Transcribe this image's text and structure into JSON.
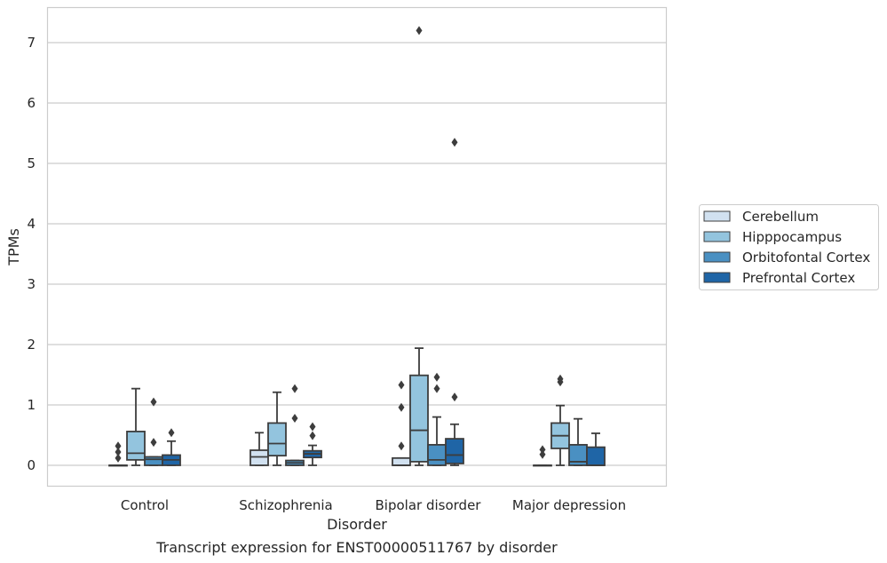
{
  "chart_data": {
    "type": "boxplot",
    "xlabel": "Disorder",
    "ylabel": "TPMs",
    "caption": "Transcript expression for ENST00000511767 by disorder",
    "ylim": [
      -0.35,
      7.6
    ],
    "yticks": [
      0,
      1,
      2,
      3,
      4,
      5,
      6,
      7
    ],
    "grid": "horizontal",
    "legend_position": "right",
    "categories": [
      "Control",
      "Schizophrenia",
      "Bipolar disorder",
      "Major depression"
    ],
    "series": [
      {
        "name": "Cerebellum",
        "color": "#d1e1f0",
        "boxes": [
          {
            "whislo": 0,
            "q1": 0,
            "med": 0,
            "q3": 0,
            "whishi": 0,
            "fliers": [
              0.12,
              0.22,
              0.32
            ]
          },
          {
            "whislo": 0,
            "q1": 0,
            "med": 0.14,
            "q3": 0.25,
            "whishi": 0.54,
            "fliers": []
          },
          {
            "whislo": 0,
            "q1": 0,
            "med": 0,
            "q3": 0.12,
            "whishi": 0.12,
            "fliers": [
              0.32,
              0.96,
              1.33
            ]
          },
          {
            "whislo": 0,
            "q1": 0,
            "med": 0,
            "q3": 0,
            "whishi": 0,
            "fliers": [
              0.18,
              0.26
            ]
          }
        ]
      },
      {
        "name": "Hipppocampus",
        "color": "#93c4de",
        "boxes": [
          {
            "whislo": 0,
            "q1": 0.09,
            "med": 0.2,
            "q3": 0.56,
            "whishi": 1.27,
            "fliers": []
          },
          {
            "whislo": 0,
            "q1": 0.16,
            "med": 0.36,
            "q3": 0.7,
            "whishi": 1.21,
            "fliers": []
          },
          {
            "whislo": 0,
            "q1": 0.06,
            "med": 0.58,
            "q3": 1.49,
            "whishi": 1.94,
            "fliers": [
              7.2
            ]
          },
          {
            "whislo": 0,
            "q1": 0.28,
            "med": 0.49,
            "q3": 0.7,
            "whishi": 0.99,
            "fliers": [
              1.38,
              1.43
            ]
          }
        ]
      },
      {
        "name": "Orbitofontal Cortex",
        "color": "#4a90c2",
        "boxes": [
          {
            "whislo": 0,
            "q1": 0,
            "med": 0.1,
            "q3": 0.14,
            "whishi": 0.14,
            "fliers": [
              0.38,
              1.05
            ]
          },
          {
            "whislo": 0,
            "q1": 0,
            "med": 0.04,
            "q3": 0.08,
            "whishi": 0.08,
            "fliers": [
              0.78,
              1.27
            ]
          },
          {
            "whislo": 0,
            "q1": 0,
            "med": 0.09,
            "q3": 0.34,
            "whishi": 0.8,
            "fliers": [
              1.27,
              1.46
            ]
          },
          {
            "whislo": 0,
            "q1": 0,
            "med": 0.06,
            "q3": 0.34,
            "whishi": 0.77,
            "fliers": []
          }
        ]
      },
      {
        "name": "Prefrontal Cortex",
        "color": "#1f65a6",
        "boxes": [
          {
            "whislo": 0,
            "q1": 0,
            "med": 0.09,
            "q3": 0.17,
            "whishi": 0.4,
            "fliers": [
              0.54
            ]
          },
          {
            "whislo": 0,
            "q1": 0.13,
            "med": 0.19,
            "q3": 0.24,
            "whishi": 0.33,
            "fliers": [
              0.49,
              0.64
            ]
          },
          {
            "whislo": 0,
            "q1": 0.03,
            "med": 0.17,
            "q3": 0.44,
            "whishi": 0.68,
            "fliers": [
              1.13,
              5.35
            ]
          },
          {
            "whislo": 0,
            "q1": 0,
            "med": 0,
            "q3": 0.3,
            "whishi": 0.53,
            "fliers": []
          }
        ]
      }
    ]
  }
}
